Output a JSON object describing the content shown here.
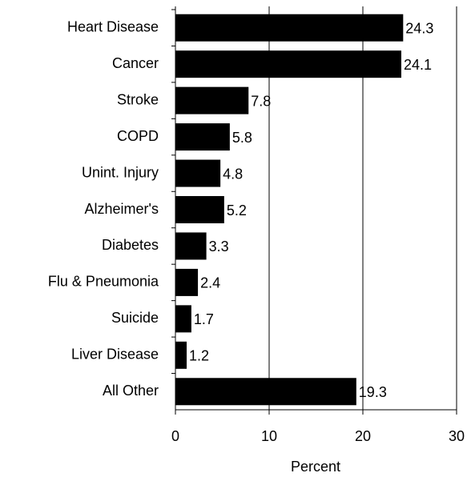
{
  "chart_data": {
    "type": "barh",
    "x_label": "Percent",
    "categories": [
      "Heart Disease",
      "Cancer",
      "Stroke",
      "COPD",
      "Unint. Injury",
      "Alzheimer's",
      "Diabetes",
      "Flu & Pneumonia",
      "Suicide",
      "Liver Disease",
      "All Other"
    ],
    "values": [
      24.3,
      24.1,
      7.8,
      5.8,
      4.8,
      5.2,
      3.3,
      2.4,
      1.7,
      1.2,
      19.3
    ],
    "color": "#000000",
    "xlim": [
      0,
      30
    ],
    "xticks": [
      0,
      10,
      20,
      30
    ],
    "grid": true
  }
}
